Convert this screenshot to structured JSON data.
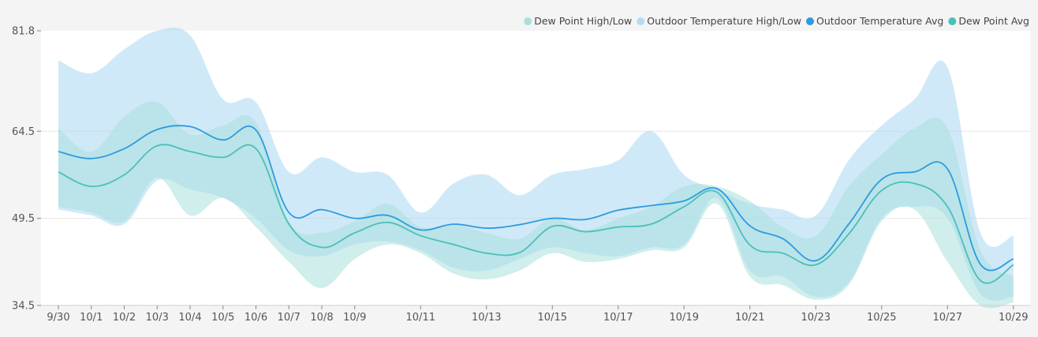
{
  "chart_data": {
    "type": "area",
    "title": "",
    "xlabel": "",
    "ylabel": "",
    "ylim": [
      34.5,
      81.8
    ],
    "y_ticks": [
      "81.8",
      "64.5",
      "49.5",
      "34.5"
    ],
    "y_tick_values": [
      81.8,
      64.5,
      49.5,
      34.5
    ],
    "x_ticks": [
      "9/30",
      "10/1",
      "10/2",
      "10/3",
      "10/4",
      "10/5",
      "10/6",
      "10/7",
      "10/8",
      "10/9",
      "10/11",
      "10/13",
      "10/15",
      "10/17",
      "10/19",
      "10/21",
      "10/23",
      "10/25",
      "10/27",
      "10/29"
    ],
    "x_tick_index": [
      0,
      1,
      2,
      3,
      4,
      5,
      6,
      7,
      8,
      9,
      11,
      13,
      15,
      17,
      19,
      21,
      23,
      25,
      27,
      29
    ],
    "x": [
      "9/30",
      "10/1",
      "10/2",
      "10/3",
      "10/4",
      "10/5",
      "10/6",
      "10/7",
      "10/8",
      "10/9",
      "10/10",
      "10/11",
      "10/12",
      "10/13",
      "10/14",
      "10/15",
      "10/16",
      "10/17",
      "10/18",
      "10/19",
      "10/20",
      "10/21",
      "10/22",
      "10/23",
      "10/24",
      "10/25",
      "10/26",
      "10/27",
      "10/28",
      "10/29"
    ],
    "legend_position": "top-right",
    "grid": true,
    "legend": [
      {
        "name": "Dew Point High/Low",
        "color": "#a8e0dc"
      },
      {
        "name": "Outdoor Temperature High/Low",
        "color": "#b3dcf4"
      },
      {
        "name": "Outdoor Temperature Avg",
        "color": "#2e9ae0"
      },
      {
        "name": "Dew Point Avg",
        "color": "#4bbfb9"
      }
    ],
    "series": [
      {
        "name": "Outdoor Temperature High/Low",
        "type": "range",
        "color": "#b3dcf4",
        "high": [
          76.7,
          74.5,
          78.6,
          81.8,
          81.0,
          70.0,
          69.5,
          57.5,
          60.0,
          57.5,
          57.0,
          50.5,
          55.5,
          57.0,
          53.5,
          57.0,
          58.0,
          59.5,
          64.5,
          57.0,
          54.5,
          52.0,
          51.0,
          50.0,
          59.5,
          65.5,
          70.0,
          75.5,
          47.0,
          46.5
        ],
        "low": [
          51.0,
          50.0,
          48.5,
          56.0,
          54.5,
          53.0,
          49.5,
          44.0,
          43.0,
          45.0,
          45.5,
          44.0,
          41.0,
          40.5,
          42.5,
          44.5,
          43.5,
          43.0,
          44.5,
          45.0,
          53.0,
          40.5,
          39.5,
          36.0,
          38.5,
          49.5,
          51.5,
          49.5,
          36.5,
          36.0
        ]
      },
      {
        "name": "Dew Point High/Low",
        "type": "range",
        "color": "#a8e0dc",
        "high": [
          65.0,
          61.0,
          67.0,
          69.5,
          64.0,
          65.5,
          66.0,
          49.0,
          47.0,
          49.0,
          52.0,
          48.0,
          48.5,
          47.0,
          46.0,
          49.5,
          47.5,
          49.5,
          51.5,
          55.0,
          55.0,
          52.5,
          48.0,
          46.5,
          55.0,
          60.5,
          65.0,
          65.0,
          44.0,
          39.5
        ],
        "low": [
          51.5,
          50.5,
          49.0,
          56.5,
          50.0,
          53.0,
          48.0,
          42.0,
          37.5,
          42.5,
          45.0,
          43.5,
          40.0,
          39.0,
          40.5,
          43.5,
          42.0,
          42.5,
          44.0,
          44.5,
          52.0,
          39.5,
          38.0,
          35.5,
          38.0,
          49.0,
          51.0,
          42.0,
          34.5,
          35.0
        ]
      },
      {
        "name": "Outdoor Temperature Avg",
        "type": "line",
        "color": "#2e9ae0",
        "values": [
          61.0,
          59.8,
          61.5,
          64.8,
          65.3,
          63.0,
          64.7,
          50.5,
          51.0,
          49.5,
          50.0,
          47.5,
          48.5,
          47.8,
          48.4,
          49.5,
          49.3,
          50.9,
          51.7,
          52.5,
          54.6,
          48.2,
          46.0,
          42.2,
          48.5,
          56.2,
          57.5,
          58.0,
          41.6,
          42.5
        ]
      },
      {
        "name": "Dew Point Avg",
        "type": "line",
        "color": "#4bbfb9",
        "values": [
          57.5,
          55.0,
          57.0,
          62.0,
          61.0,
          60.0,
          61.5,
          48.5,
          44.5,
          47.0,
          48.8,
          46.5,
          45.0,
          43.5,
          43.6,
          48.1,
          47.2,
          48.0,
          48.5,
          51.5,
          54.0,
          44.9,
          43.5,
          41.5,
          46.8,
          54.3,
          55.5,
          51.5,
          38.8,
          41.5
        ]
      }
    ]
  }
}
